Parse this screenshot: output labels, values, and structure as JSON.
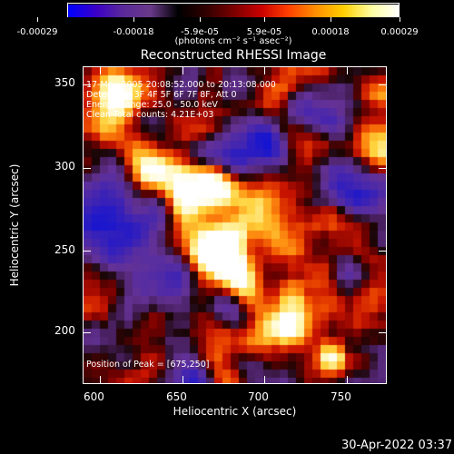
{
  "colorbar": {
    "tick_labels": [
      "-0.00029",
      "-0.00018",
      "-5.9e-05",
      "5.9e-05",
      "0.00018",
      "0.00029"
    ],
    "units": "(photons cm⁻² s⁻¹ asec⁻²)",
    "colors": [
      "#0000ff",
      "#3a00c8",
      "#5b2a9a",
      "#6a3a8a",
      "#000000",
      "#300000",
      "#7a0000",
      "#c80000",
      "#ff4000",
      "#ff9000",
      "#ffd000",
      "#ffffa0",
      "#ffffff"
    ]
  },
  "plot": {
    "title": "Reconstructed RHESSI Image",
    "info_lines": [
      "17-May-2005 20:08:52.000 to 20:13:08.000",
      "Detectors: 3F 4F 5F 6F 7F 8F, Att 0",
      "Energy Range: 25.0 - 50.0 keV",
      "Clean     Total counts: 4.21E+03"
    ],
    "peak_text": "Position of Peak = [675,250]",
    "xlabel": "Heliocentric X (arcsec)",
    "ylabel": "Heliocentric Y (arcsec)",
    "x_ticks": [
      "600",
      "650",
      "700",
      "750"
    ],
    "y_ticks": [
      "350",
      "300",
      "250",
      "200"
    ]
  },
  "footer": {
    "timestamp": "30-Apr-2022 03:37"
  },
  "chart_data": {
    "type": "heatmap",
    "title": "Reconstructed RHESSI Image",
    "xlabel": "Heliocentric X (arcsec)",
    "ylabel": "Heliocentric Y (arcsec)",
    "xlim": [
      584,
      775
    ],
    "ylim": [
      165,
      365
    ],
    "zlim": [
      -0.00029,
      0.00029
    ],
    "peak": [
      675,
      250
    ]
  }
}
